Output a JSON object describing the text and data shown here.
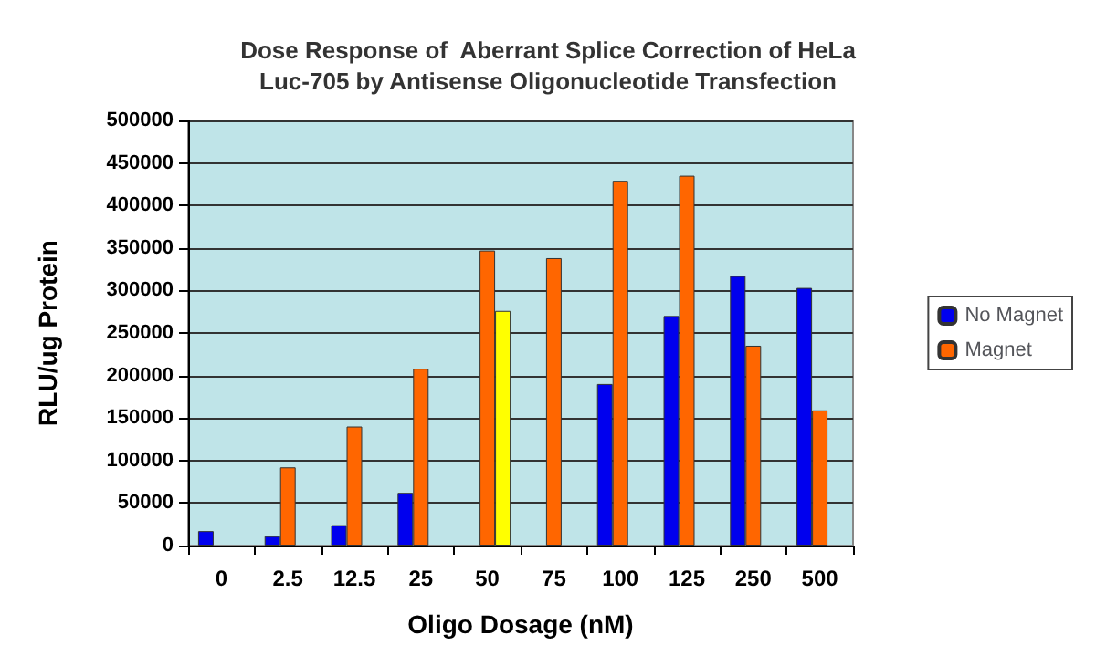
{
  "chart_data": {
    "type": "bar",
    "title": "Dose Response of  Aberrant Splice Correction of HeLa\nLuc-705 by Antisense Oligonucleotide Transfection",
    "xlabel": "Oligo Dosage (nM)",
    "ylabel": "RLU/ug Protein",
    "categories": [
      "0",
      "2.5",
      "12.5",
      "25",
      "50",
      "75",
      "100",
      "125",
      "250",
      "500"
    ],
    "series": [
      {
        "name": "No Magnet",
        "color": "#0000ee",
        "values": [
          17000,
          11000,
          24000,
          62000,
          null,
          null,
          190000,
          270000,
          317000,
          303000
        ]
      },
      {
        "name": "Magnet",
        "color": "#ff6600",
        "values": [
          null,
          92000,
          140000,
          208000,
          347000,
          338000,
          429000,
          435000,
          235000,
          159000
        ]
      },
      {
        "color": "#ffff00",
        "values": [
          null,
          null,
          null,
          null,
          276000,
          null,
          null,
          null,
          null,
          null
        ]
      }
    ],
    "ylim": [
      0,
      500000
    ],
    "yticks": [
      0,
      50000,
      100000,
      150000,
      200000,
      250000,
      300000,
      350000,
      400000,
      450000,
      500000
    ],
    "grid": "y",
    "legend": "right"
  }
}
